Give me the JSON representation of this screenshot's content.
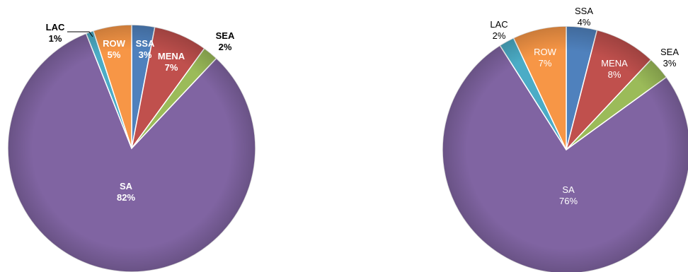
{
  "chart_data": [
    {
      "type": "pie",
      "slices": [
        {
          "label": "SSA",
          "value": 3,
          "value_text": "3%",
          "color": "#4f81bd"
        },
        {
          "label": "MENA",
          "value": 7,
          "value_text": "7%",
          "color": "#c0504d"
        },
        {
          "label": "SEA",
          "value": 2,
          "value_text": "2%",
          "color": "#9bbb59"
        },
        {
          "label": "SA",
          "value": 82,
          "value_text": "82%",
          "color": "#8064a2"
        },
        {
          "label": "LAC",
          "value": 1,
          "value_text": "1%",
          "color": "#4bacc6"
        },
        {
          "label": "ROW",
          "value": 5,
          "value_text": "5%",
          "color": "#f79646"
        }
      ]
    },
    {
      "type": "pie",
      "slices": [
        {
          "label": "SSA",
          "value": 4,
          "value_text": "4%",
          "color": "#4f81bd"
        },
        {
          "label": "MENA",
          "value": 8,
          "value_text": "8%",
          "color": "#c0504d"
        },
        {
          "label": "SEA",
          "value": 3,
          "value_text": "3%",
          "color": "#9bbb59"
        },
        {
          "label": "SA",
          "value": 76,
          "value_text": "76%",
          "color": "#8064a2"
        },
        {
          "label": "LAC",
          "value": 2,
          "value_text": "2%",
          "color": "#4bacc6"
        },
        {
          "label": "ROW",
          "value": 7,
          "value_text": "7%",
          "color": "#f79646"
        }
      ]
    }
  ]
}
